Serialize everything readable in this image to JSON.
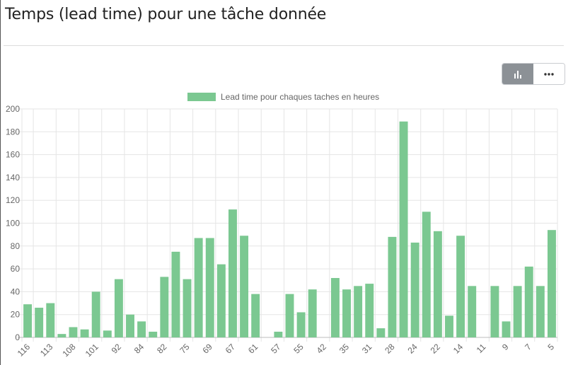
{
  "page": {
    "title": "Temps (lead time) pour une tâche donnée"
  },
  "toolbar": {
    "chart_view_icon": "bar-chart-icon",
    "more_icon": "more-horizontal-icon",
    "active_color": "#8c9196"
  },
  "chart_data": {
    "type": "bar",
    "legend": {
      "label": "Lead time pour chaques taches en heures",
      "position": "top-center"
    },
    "color": "#7bc891",
    "ylim": [
      0,
      200
    ],
    "yticks": [
      0,
      20,
      40,
      60,
      80,
      100,
      120,
      140,
      160,
      180,
      200
    ],
    "grid": true,
    "x_tick_labels": [
      "116",
      "113",
      "108",
      "101",
      "92",
      "84",
      "82",
      "75",
      "69",
      "67",
      "61",
      "57",
      "55",
      "42",
      "35",
      "31",
      "28",
      "24",
      "22",
      "14",
      "11",
      "9",
      "7",
      "5"
    ],
    "values": [
      29,
      26,
      30,
      3,
      9,
      7,
      40,
      6,
      51,
      20,
      14,
      5,
      53,
      75,
      51,
      87,
      87,
      64,
      112,
      89,
      38,
      0,
      5,
      38,
      22,
      42,
      0,
      52,
      42,
      45,
      47,
      8,
      88,
      189,
      83,
      110,
      93,
      19,
      89,
      45,
      0,
      45,
      14,
      45,
      62,
      45,
      94
    ]
  }
}
